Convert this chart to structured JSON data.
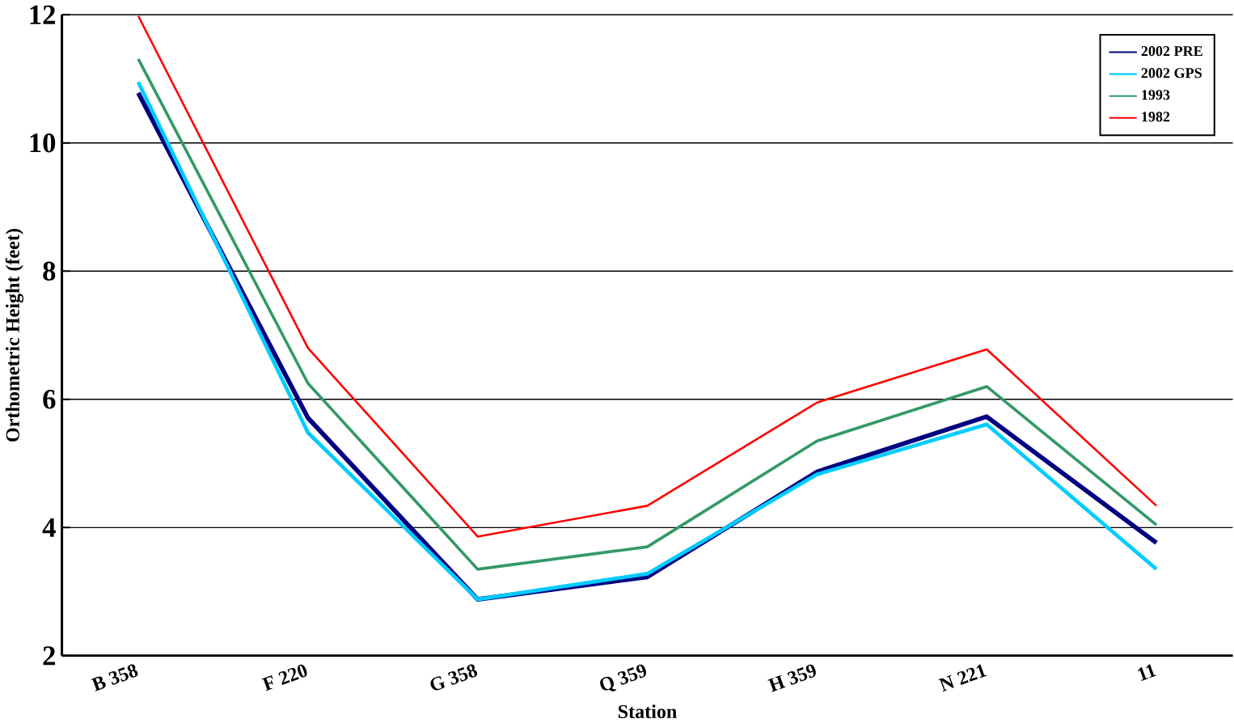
{
  "chart_data": {
    "type": "line",
    "xlabel": "Station",
    "ylabel": "Orthometric Height (feet)",
    "categories": [
      "B 358",
      "F 220",
      "G 358",
      "Q 359",
      "H 359",
      "N 221",
      "11"
    ],
    "series": [
      {
        "name": "2002 PRE",
        "color": "#000080",
        "values": [
          10.78,
          5.71,
          2.88,
          3.23,
          4.87,
          5.73,
          3.76
        ]
      },
      {
        "name": "2002 GPS",
        "color": "#00ccff",
        "values": [
          10.95,
          5.48,
          2.88,
          3.28,
          4.83,
          5.61,
          3.35
        ]
      },
      {
        "name": "1993",
        "color": "#339966",
        "values": [
          11.31,
          6.25,
          3.35,
          3.7,
          5.35,
          6.2,
          4.04
        ]
      },
      {
        "name": "1982",
        "color": "#ff0000",
        "values": [
          11.98,
          6.8,
          3.86,
          4.34,
          5.95,
          6.78,
          4.34
        ]
      }
    ],
    "ylim": [
      2,
      12
    ],
    "yticks": [
      2,
      4,
      6,
      8,
      10,
      12
    ],
    "grid": "y",
    "legend": "top right",
    "marker": "none",
    "line_style": "solid"
  }
}
